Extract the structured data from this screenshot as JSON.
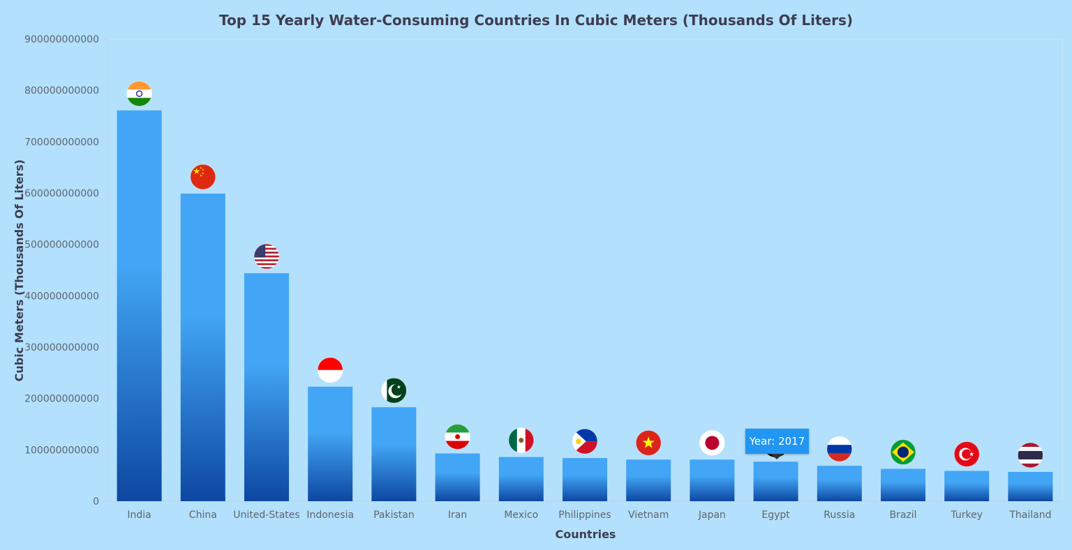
{
  "chart_data": {
    "type": "bar",
    "title": "Top 15 Yearly Water-Consuming Countries In Cubic Meters (Thousands Of Liters)",
    "xlabel": "Countries",
    "ylabel": "Cubic Meters (Thousands Of Liters)",
    "ylim": [
      0,
      900000000000
    ],
    "yticks": [
      "0",
      "100000000000",
      "200000000000",
      "300000000000",
      "400000000000",
      "500000000000",
      "600000000000",
      "700000000000",
      "800000000000",
      "900000000000"
    ],
    "grid": false,
    "categories": [
      "India",
      "China",
      "United-States",
      "Indonesia",
      "Pakistan",
      "Iran",
      "Mexico",
      "Philippines",
      "Vietnam",
      "Japan",
      "Egypt",
      "Russia",
      "Brazil",
      "Turkey",
      "Thailand"
    ],
    "values": [
      761000000000,
      599000000000,
      444000000000,
      223000000000,
      183000000000,
      93000000000,
      86000000000,
      84000000000,
      81000000000,
      81000000000,
      77000000000,
      69000000000,
      63000000000,
      59000000000,
      57000000000
    ],
    "bar_colors": {
      "top": "#42a5f5",
      "bottom": "#0d47a1"
    },
    "markers": [
      "india-flag-icon",
      "china-flag-icon",
      "usa-flag-icon",
      "indonesia-flag-icon",
      "pakistan-flag-icon",
      "iran-flag-icon",
      "mexico-flag-icon",
      "philippines-flag-icon",
      "vietnam-flag-icon",
      "japan-flag-icon",
      "egypt-flag-icon",
      "russia-flag-icon",
      "brazil-flag-icon",
      "turkey-flag-icon",
      "thailand-flag-icon"
    ]
  },
  "tooltip": {
    "text": "Year: 2017",
    "category": "Egypt"
  }
}
